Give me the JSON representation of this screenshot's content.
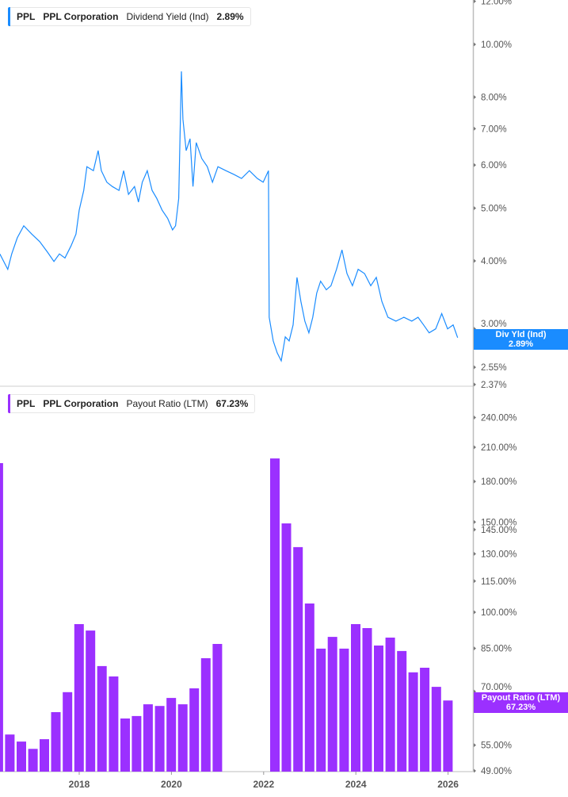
{
  "chart_data": [
    {
      "type": "line",
      "ticker": "PPL",
      "company": "PPL Corporation",
      "metric": "Dividend Yield (Ind)",
      "current_value": "2.89%",
      "tag_label": "Div Yld (Ind)",
      "color": "#1a8cff",
      "y_scale": "log",
      "ylim": [
        2.37,
        12.0
      ],
      "y_ticks": [
        "12.00%",
        "10.00%",
        "8.00%",
        "7.00%",
        "6.00%",
        "5.00%",
        "4.00%",
        "3.00%",
        "2.55%",
        "2.37%"
      ],
      "y_tick_values": [
        12,
        10,
        8,
        7,
        6,
        5,
        4,
        3,
        2.55,
        2.37
      ],
      "grid": false,
      "points": [
        [
          "2016-04-12",
          4.12
        ],
        [
          "2016-06-14",
          3.86
        ],
        [
          "2016-07-15",
          4.12
        ],
        [
          "2016-08-28",
          4.41
        ],
        [
          "2016-10-19",
          4.64
        ],
        [
          "2016-12-21",
          4.48
        ],
        [
          "2017-02-22",
          4.34
        ],
        [
          "2017-04-25",
          4.15
        ],
        [
          "2017-06-15",
          3.99
        ],
        [
          "2017-07-28",
          4.12
        ],
        [
          "2017-09-10",
          4.05
        ],
        [
          "2017-10-28",
          4.26
        ],
        [
          "2017-12-06",
          4.48
        ],
        [
          "2018-01-01",
          4.96
        ],
        [
          "2018-02-06",
          5.39
        ],
        [
          "2018-03-03",
          5.96
        ],
        [
          "2018-04-23",
          5.86
        ],
        [
          "2018-05-31",
          6.38
        ],
        [
          "2018-06-25",
          5.86
        ],
        [
          "2018-08-08",
          5.58
        ],
        [
          "2018-09-20",
          5.48
        ],
        [
          "2018-11-12",
          5.39
        ],
        [
          "2018-12-19",
          5.86
        ],
        [
          "2019-01-26",
          5.3
        ],
        [
          "2019-03-15",
          5.48
        ],
        [
          "2019-04-15",
          5.13
        ],
        [
          "2019-05-15",
          5.58
        ],
        [
          "2019-06-24",
          5.86
        ],
        [
          "2019-08-01",
          5.39
        ],
        [
          "2019-09-07",
          5.21
        ],
        [
          "2019-10-19",
          4.96
        ],
        [
          "2019-12-02",
          4.79
        ],
        [
          "2020-01-10",
          4.56
        ],
        [
          "2020-02-03",
          4.64
        ],
        [
          "2020-02-28",
          5.21
        ],
        [
          "2020-03-20",
          8.92
        ],
        [
          "2020-04-01",
          7.29
        ],
        [
          "2020-04-27",
          6.38
        ],
        [
          "2020-05-28",
          6.71
        ],
        [
          "2020-06-20",
          5.48
        ],
        [
          "2020-07-16",
          6.6
        ],
        [
          "2020-08-29",
          6.17
        ],
        [
          "2020-10-12",
          5.96
        ],
        [
          "2020-11-22",
          5.58
        ],
        [
          "2021-01-04",
          5.96
        ],
        [
          "2021-03-08",
          5.86
        ],
        [
          "2021-05-09",
          5.77
        ],
        [
          "2021-07-10",
          5.67
        ],
        [
          "2021-09-10",
          5.86
        ],
        [
          "2021-11-12",
          5.67
        ],
        [
          "2021-12-28",
          5.58
        ],
        [
          "2022-02-08",
          5.86
        ],
        [
          "2022-02-14",
          3.15
        ],
        [
          "2022-03-18",
          2.85
        ],
        [
          "2022-04-18",
          2.71
        ],
        [
          "2022-05-20",
          2.62
        ],
        [
          "2022-06-21",
          2.9
        ],
        [
          "2022-07-22",
          2.85
        ],
        [
          "2022-08-22",
          3.05
        ],
        [
          "2022-09-22",
          3.73
        ],
        [
          "2022-10-23",
          3.37
        ],
        [
          "2022-11-23",
          3.1
        ],
        [
          "2022-12-25",
          2.95
        ],
        [
          "2023-01-25",
          3.15
        ],
        [
          "2023-02-25",
          3.49
        ],
        [
          "2023-03-28",
          3.67
        ],
        [
          "2023-05-12",
          3.54
        ],
        [
          "2023-06-18",
          3.6
        ],
        [
          "2023-08-01",
          3.86
        ],
        [
          "2023-09-13",
          4.19
        ],
        [
          "2023-10-23",
          3.79
        ],
        [
          "2023-12-05",
          3.6
        ],
        [
          "2024-01-19",
          3.86
        ],
        [
          "2024-03-10",
          3.79
        ],
        [
          "2024-04-28",
          3.6
        ],
        [
          "2024-06-11",
          3.73
        ],
        [
          "2024-07-25",
          3.37
        ],
        [
          "2024-09-12",
          3.15
        ],
        [
          "2024-11-14",
          3.1
        ],
        [
          "2025-01-16",
          3.15
        ],
        [
          "2025-03-20",
          3.1
        ],
        [
          "2025-05-08",
          3.15
        ],
        [
          "2025-06-21",
          3.05
        ],
        [
          "2025-08-04",
          2.95
        ],
        [
          "2025-09-25",
          3.0
        ],
        [
          "2025-11-12",
          3.2
        ],
        [
          "2025-12-28",
          3.0
        ],
        [
          "2026-02-10",
          3.05
        ],
        [
          "2026-03-18",
          2.89
        ]
      ]
    },
    {
      "type": "bar",
      "ticker": "PPL",
      "company": "PPL Corporation",
      "metric": "Payout Ratio (LTM)",
      "current_value": "67.23%",
      "tag_label": "Payout Ratio (LTM)",
      "color": "#9b30ff",
      "y_scale": "log",
      "ylim": [
        49,
        240
      ],
      "y_ticks": [
        "240.00%",
        "210.00%",
        "180.00%",
        "150.00%",
        "145.00%",
        "130.00%",
        "115.00%",
        "100.00%",
        "85.00%",
        "70.00%",
        "55.00%",
        "49.00%"
      ],
      "y_tick_values": [
        240,
        210,
        180,
        150,
        145,
        130,
        115,
        100,
        85,
        70,
        55,
        49
      ],
      "grid": false,
      "x_ticks": [
        "2018",
        "2020",
        "2022",
        "2024",
        "2026"
      ],
      "bars": [
        [
          "2016-03-31",
          195.5
        ],
        [
          "2016-06-30",
          57.7
        ],
        [
          "2016-09-30",
          55.9
        ],
        [
          "2016-12-31",
          54.1
        ],
        [
          "2017-03-31",
          56.5
        ],
        [
          "2017-06-30",
          63.8
        ],
        [
          "2017-09-30",
          69.8
        ],
        [
          "2017-12-31",
          94.8
        ],
        [
          "2018-03-31",
          92.1
        ],
        [
          "2018-06-30",
          78.5
        ],
        [
          "2018-09-30",
          74.9
        ],
        [
          "2018-12-31",
          62.0
        ],
        [
          "2019-03-31",
          62.7
        ],
        [
          "2019-06-30",
          66.1
        ],
        [
          "2019-09-30",
          65.6
        ],
        [
          "2019-12-31",
          68.0
        ],
        [
          "2020-03-31",
          66.1
        ],
        [
          "2020-06-30",
          71.0
        ],
        [
          "2020-09-30",
          81.3
        ],
        [
          "2020-12-31",
          86.7
        ],
        [
          "2022-03-31",
          199.7
        ],
        [
          "2022-06-30",
          149.1
        ],
        [
          "2022-09-30",
          134.0
        ],
        [
          "2022-12-31",
          104.0
        ],
        [
          "2023-03-31",
          84.9
        ],
        [
          "2023-06-30",
          89.5
        ],
        [
          "2023-09-30",
          84.9
        ],
        [
          "2023-12-31",
          94.8
        ],
        [
          "2024-03-31",
          93.1
        ],
        [
          "2024-06-30",
          86.1
        ],
        [
          "2024-09-30",
          89.2
        ],
        [
          "2024-12-31",
          84.0
        ],
        [
          "2025-03-31",
          76.3
        ],
        [
          "2025-06-30",
          77.9
        ],
        [
          "2025-09-30",
          71.5
        ],
        [
          "2025-12-31",
          67.23
        ]
      ]
    }
  ]
}
